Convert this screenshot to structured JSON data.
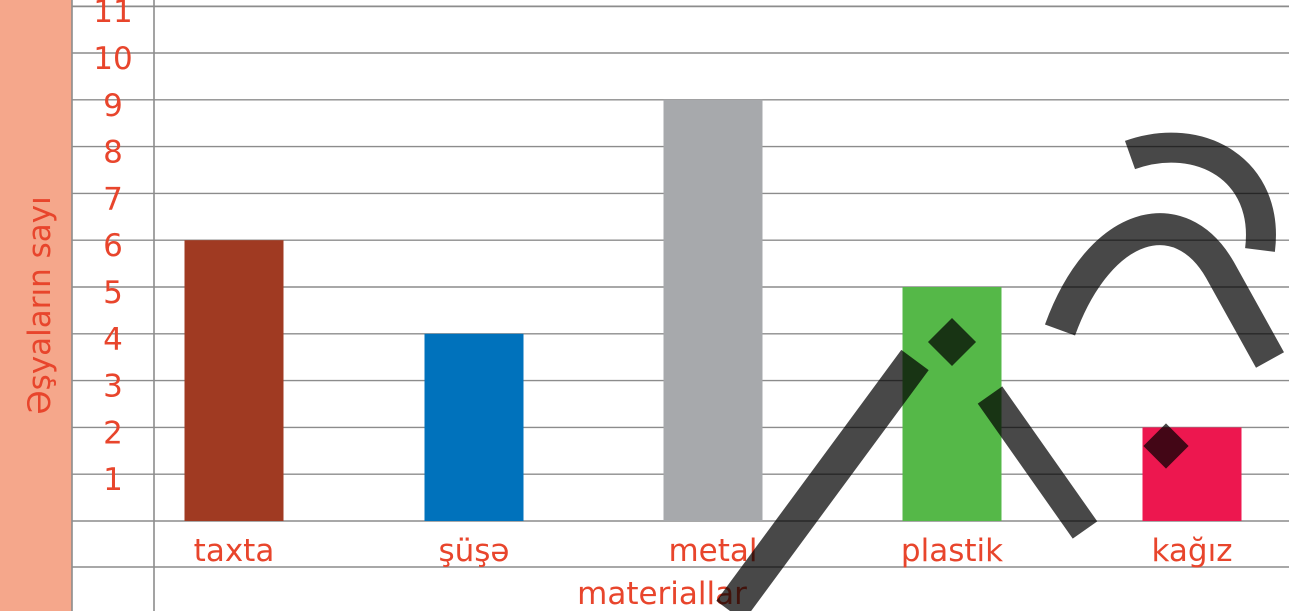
{
  "colors": {
    "text": "#e8452c",
    "label_panel": "#f5a78b",
    "grid": "#8c8c8c",
    "background": "#ffffff",
    "watermark": "#000000"
  },
  "chart_data": {
    "type": "bar",
    "title": "",
    "ylabel": "Əşyaların sayı",
    "xlabel": "materiallar",
    "categories": [
      "taxta",
      "şüşə",
      "metal",
      "plastik",
      "kağız"
    ],
    "values": [
      6,
      4,
      9,
      5,
      2
    ],
    "bar_colors": [
      "#a03a22",
      "#0072bc",
      "#a7a9ac",
      "#55b848",
      "#ed174f"
    ],
    "yticks": [
      "1",
      "2",
      "3",
      "4",
      "5",
      "6",
      "7",
      "8",
      "9",
      "10",
      "11"
    ],
    "ylim": [
      0,
      11
    ],
    "grid": true,
    "legend": "none"
  }
}
